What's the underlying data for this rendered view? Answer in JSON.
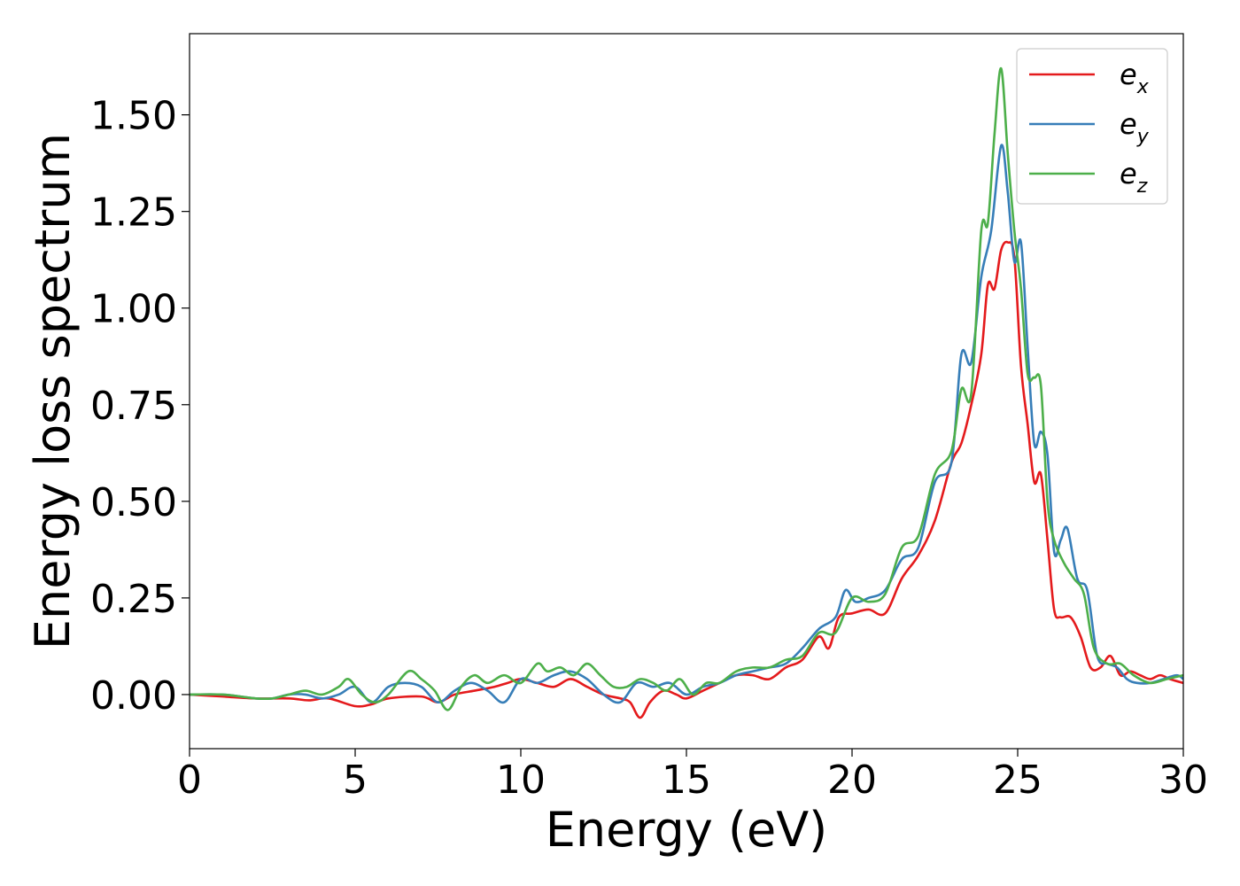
{
  "chart_data": {
    "type": "line",
    "title": "",
    "xlabel": "Energy (eV)",
    "ylabel": "Energy loss spectrum",
    "xlim": [
      0,
      30
    ],
    "ylim": [
      -0.14,
      1.71
    ],
    "xticks": [
      0,
      5,
      10,
      15,
      20,
      25,
      30
    ],
    "xtick_labels": [
      "0",
      "5",
      "10",
      "15",
      "20",
      "25",
      "30"
    ],
    "yticks": [
      0.0,
      0.25,
      0.5,
      0.75,
      1.0,
      1.25,
      1.5
    ],
    "ytick_labels": [
      "0.00",
      "0.25",
      "0.50",
      "0.75",
      "1.00",
      "1.25",
      "1.50"
    ],
    "grid": false,
    "legend_position": "top-right",
    "series": [
      {
        "name": "e_x",
        "legend_base": "e",
        "legend_sub": "x",
        "color": "#e41a1c",
        "x": [
          0,
          1,
          2,
          3,
          3.6,
          4.2,
          5,
          5.5,
          6,
          7,
          7.5,
          8,
          8.6,
          9.2,
          9.6,
          10,
          10.5,
          11,
          11.5,
          12,
          12.5,
          13,
          13.3,
          13.6,
          13.9,
          14.3,
          14.7,
          15,
          15.5,
          16,
          16.5,
          17,
          17.5,
          18,
          18.5,
          19,
          19.3,
          19.6,
          20,
          20.5,
          21,
          21.5,
          22,
          22.5,
          23,
          23.3,
          23.6,
          23.9,
          24.1,
          24.3,
          24.5,
          24.7,
          24.9,
          25.1,
          25.3,
          25.5,
          25.7,
          25.9,
          26.1,
          26.3,
          26.6,
          26.9,
          27.2,
          27.5,
          27.8,
          28.1,
          28.4,
          28.7,
          29,
          29.3,
          29.6,
          30
        ],
        "y": [
          0.0,
          -0.005,
          -0.01,
          -0.01,
          -0.015,
          -0.01,
          -0.03,
          -0.025,
          -0.01,
          -0.005,
          -0.02,
          0.0,
          0.01,
          0.02,
          0.03,
          0.04,
          0.03,
          0.02,
          0.04,
          0.02,
          0.0,
          -0.01,
          -0.02,
          -0.06,
          -0.02,
          0.01,
          0.0,
          -0.01,
          0.01,
          0.03,
          0.05,
          0.05,
          0.04,
          0.07,
          0.09,
          0.15,
          0.12,
          0.2,
          0.21,
          0.22,
          0.21,
          0.3,
          0.36,
          0.45,
          0.6,
          0.65,
          0.75,
          0.88,
          1.06,
          1.05,
          1.15,
          1.17,
          1.13,
          0.85,
          0.7,
          0.55,
          0.57,
          0.4,
          0.22,
          0.2,
          0.2,
          0.15,
          0.07,
          0.07,
          0.1,
          0.05,
          0.06,
          0.05,
          0.04,
          0.05,
          0.04,
          0.03
        ]
      },
      {
        "name": "e_y",
        "legend_base": "e",
        "legend_sub": "y",
        "color": "#377eb8",
        "x": [
          0,
          1,
          2,
          2.5,
          3,
          3.5,
          4,
          4.5,
          5,
          5.5,
          6,
          6.5,
          7,
          7.5,
          8,
          8.5,
          9,
          9.5,
          10,
          10.5,
          11,
          11.5,
          12,
          12.5,
          13,
          13.5,
          14,
          14.5,
          15,
          15.5,
          16,
          16.5,
          17,
          17.5,
          18,
          18.5,
          19,
          19.5,
          19.8,
          20.1,
          20.5,
          21,
          21.5,
          22,
          22.5,
          23,
          23.3,
          23.6,
          23.9,
          24.2,
          24.5,
          24.7,
          24.9,
          25.1,
          25.3,
          25.5,
          25.7,
          25.9,
          26.1,
          26.3,
          26.5,
          26.8,
          27.1,
          27.4,
          27.7,
          28,
          28.3,
          28.6,
          29,
          29.4,
          29.8,
          30
        ],
        "y": [
          0.0,
          0.0,
          -0.01,
          -0.01,
          0.0,
          0.0,
          -0.01,
          0.0,
          0.02,
          -0.02,
          0.02,
          0.03,
          0.02,
          -0.02,
          0.01,
          0.03,
          0.01,
          -0.02,
          0.04,
          0.03,
          0.05,
          0.06,
          0.04,
          0.0,
          -0.02,
          0.03,
          0.02,
          0.03,
          0.0,
          0.02,
          0.03,
          0.05,
          0.06,
          0.07,
          0.08,
          0.12,
          0.17,
          0.2,
          0.27,
          0.24,
          0.25,
          0.27,
          0.35,
          0.38,
          0.55,
          0.6,
          0.88,
          0.86,
          1.08,
          1.2,
          1.42,
          1.3,
          1.12,
          1.17,
          0.9,
          0.65,
          0.68,
          0.62,
          0.37,
          0.4,
          0.43,
          0.3,
          0.27,
          0.1,
          0.08,
          0.07,
          0.04,
          0.03,
          0.03,
          0.04,
          0.05,
          0.04
        ]
      },
      {
        "name": "e_z",
        "legend_base": "e",
        "legend_sub": "z",
        "color": "#4daf4a",
        "x": [
          0,
          1,
          2,
          2.5,
          3,
          3.5,
          4,
          4.5,
          4.8,
          5.2,
          5.6,
          6,
          6.6,
          7,
          7.4,
          7.8,
          8.2,
          8.6,
          9,
          9.5,
          10,
          10.5,
          10.8,
          11.2,
          11.6,
          12,
          12.4,
          12.8,
          13.2,
          13.6,
          14,
          14.4,
          14.8,
          15.2,
          15.6,
          16,
          16.5,
          17,
          17.5,
          18,
          18.5,
          19,
          19.5,
          20,
          20.5,
          21,
          21.5,
          22,
          22.5,
          23,
          23.3,
          23.6,
          23.9,
          24.1,
          24.3,
          24.5,
          24.7,
          24.9,
          25.1,
          25.3,
          25.5,
          25.7,
          25.9,
          26.1,
          26.4,
          26.7,
          27,
          27.3,
          27.7,
          28.1,
          28.5,
          29,
          29.5,
          30
        ],
        "y": [
          0.0,
          0.0,
          -0.01,
          -0.01,
          0.0,
          0.01,
          0.0,
          0.02,
          0.04,
          0.0,
          -0.02,
          0.0,
          0.06,
          0.04,
          0.01,
          -0.04,
          0.02,
          0.05,
          0.03,
          0.05,
          0.03,
          0.08,
          0.06,
          0.07,
          0.05,
          0.08,
          0.05,
          0.02,
          0.02,
          0.04,
          0.03,
          0.01,
          0.04,
          0.0,
          0.03,
          0.03,
          0.06,
          0.07,
          0.07,
          0.09,
          0.1,
          0.16,
          0.16,
          0.25,
          0.24,
          0.26,
          0.38,
          0.41,
          0.57,
          0.63,
          0.79,
          0.78,
          1.2,
          1.22,
          1.45,
          1.62,
          1.4,
          1.2,
          1.05,
          0.83,
          0.82,
          0.8,
          0.5,
          0.4,
          0.34,
          0.3,
          0.26,
          0.12,
          0.08,
          0.08,
          0.05,
          0.03,
          0.04,
          0.05
        ]
      }
    ]
  }
}
